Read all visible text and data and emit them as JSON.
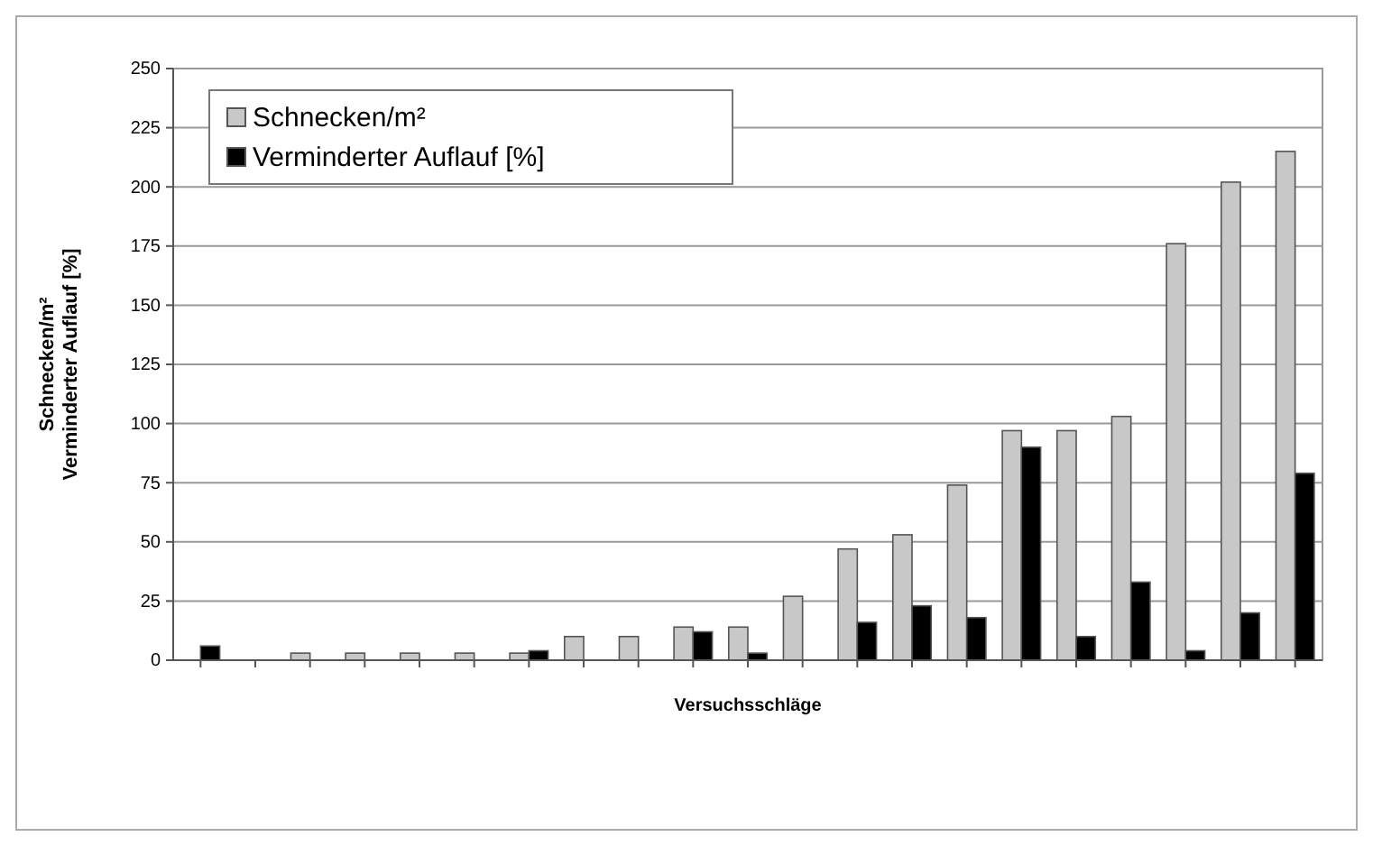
{
  "chart_data": {
    "type": "bar",
    "xlabel": "Versuchsschläge",
    "ylabel": "Schnecken/m²\nVerminderter Auflauf [%]",
    "categories": [
      null,
      null,
      null,
      null,
      null,
      null,
      null,
      null,
      null,
      null,
      null,
      null,
      null,
      null,
      null,
      null,
      null,
      null,
      null,
      null,
      null
    ],
    "series": [
      {
        "name": "Schnecken/m²",
        "color": "#c8c8c8",
        "values": [
          0,
          0,
          3,
          3,
          3,
          3,
          3,
          10,
          10,
          14,
          14,
          27,
          47,
          53,
          74,
          97,
          97,
          103,
          176,
          202,
          215
        ]
      },
      {
        "name": "Verminderter Auflauf [%]",
        "color": "#000000",
        "values": [
          6,
          0,
          0,
          0,
          0,
          0,
          4,
          0,
          0,
          12,
          3,
          0,
          16,
          23,
          18,
          90,
          10,
          33,
          4,
          20,
          79
        ]
      }
    ],
    "ylim": [
      0,
      250
    ],
    "yticks": [
      0,
      25,
      50,
      75,
      100,
      125,
      150,
      175,
      200,
      225,
      250
    ],
    "grid": "y",
    "legend": "top left"
  }
}
